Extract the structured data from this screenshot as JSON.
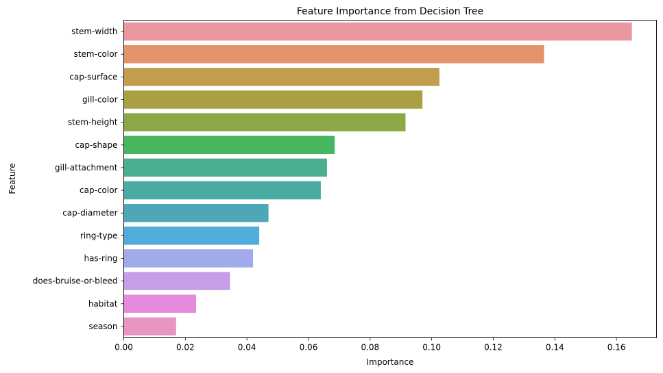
{
  "chart_data": {
    "type": "bar",
    "orientation": "horizontal",
    "title": "Feature Importance from Decision Tree",
    "xlabel": "Importance",
    "ylabel": "Feature",
    "xlim": [
      0,
      0.173
    ],
    "xticks": [
      "0.00",
      "0.02",
      "0.04",
      "0.06",
      "0.08",
      "0.10",
      "0.12",
      "0.14",
      "0.16"
    ],
    "grid": false,
    "categories": [
      "stem-width",
      "stem-color",
      "cap-surface",
      "gill-color",
      "stem-height",
      "cap-shape",
      "gill-attachment",
      "cap-color",
      "cap-diameter",
      "ring-type",
      "has-ring",
      "does-bruise-or-bleed",
      "habitat",
      "season"
    ],
    "values": [
      0.165,
      0.1365,
      0.1025,
      0.097,
      0.0915,
      0.0685,
      0.066,
      0.064,
      0.047,
      0.044,
      0.042,
      0.0345,
      0.0235,
      0.017
    ],
    "colors": [
      "#ec96a0",
      "#e4946a",
      "#c39d4e",
      "#a8a043",
      "#8ca847",
      "#48b55f",
      "#4bae8e",
      "#4aaba2",
      "#4da7b6",
      "#51abdb",
      "#a1aaea",
      "#c79ce8",
      "#e68ade",
      "#e995c3"
    ]
  }
}
